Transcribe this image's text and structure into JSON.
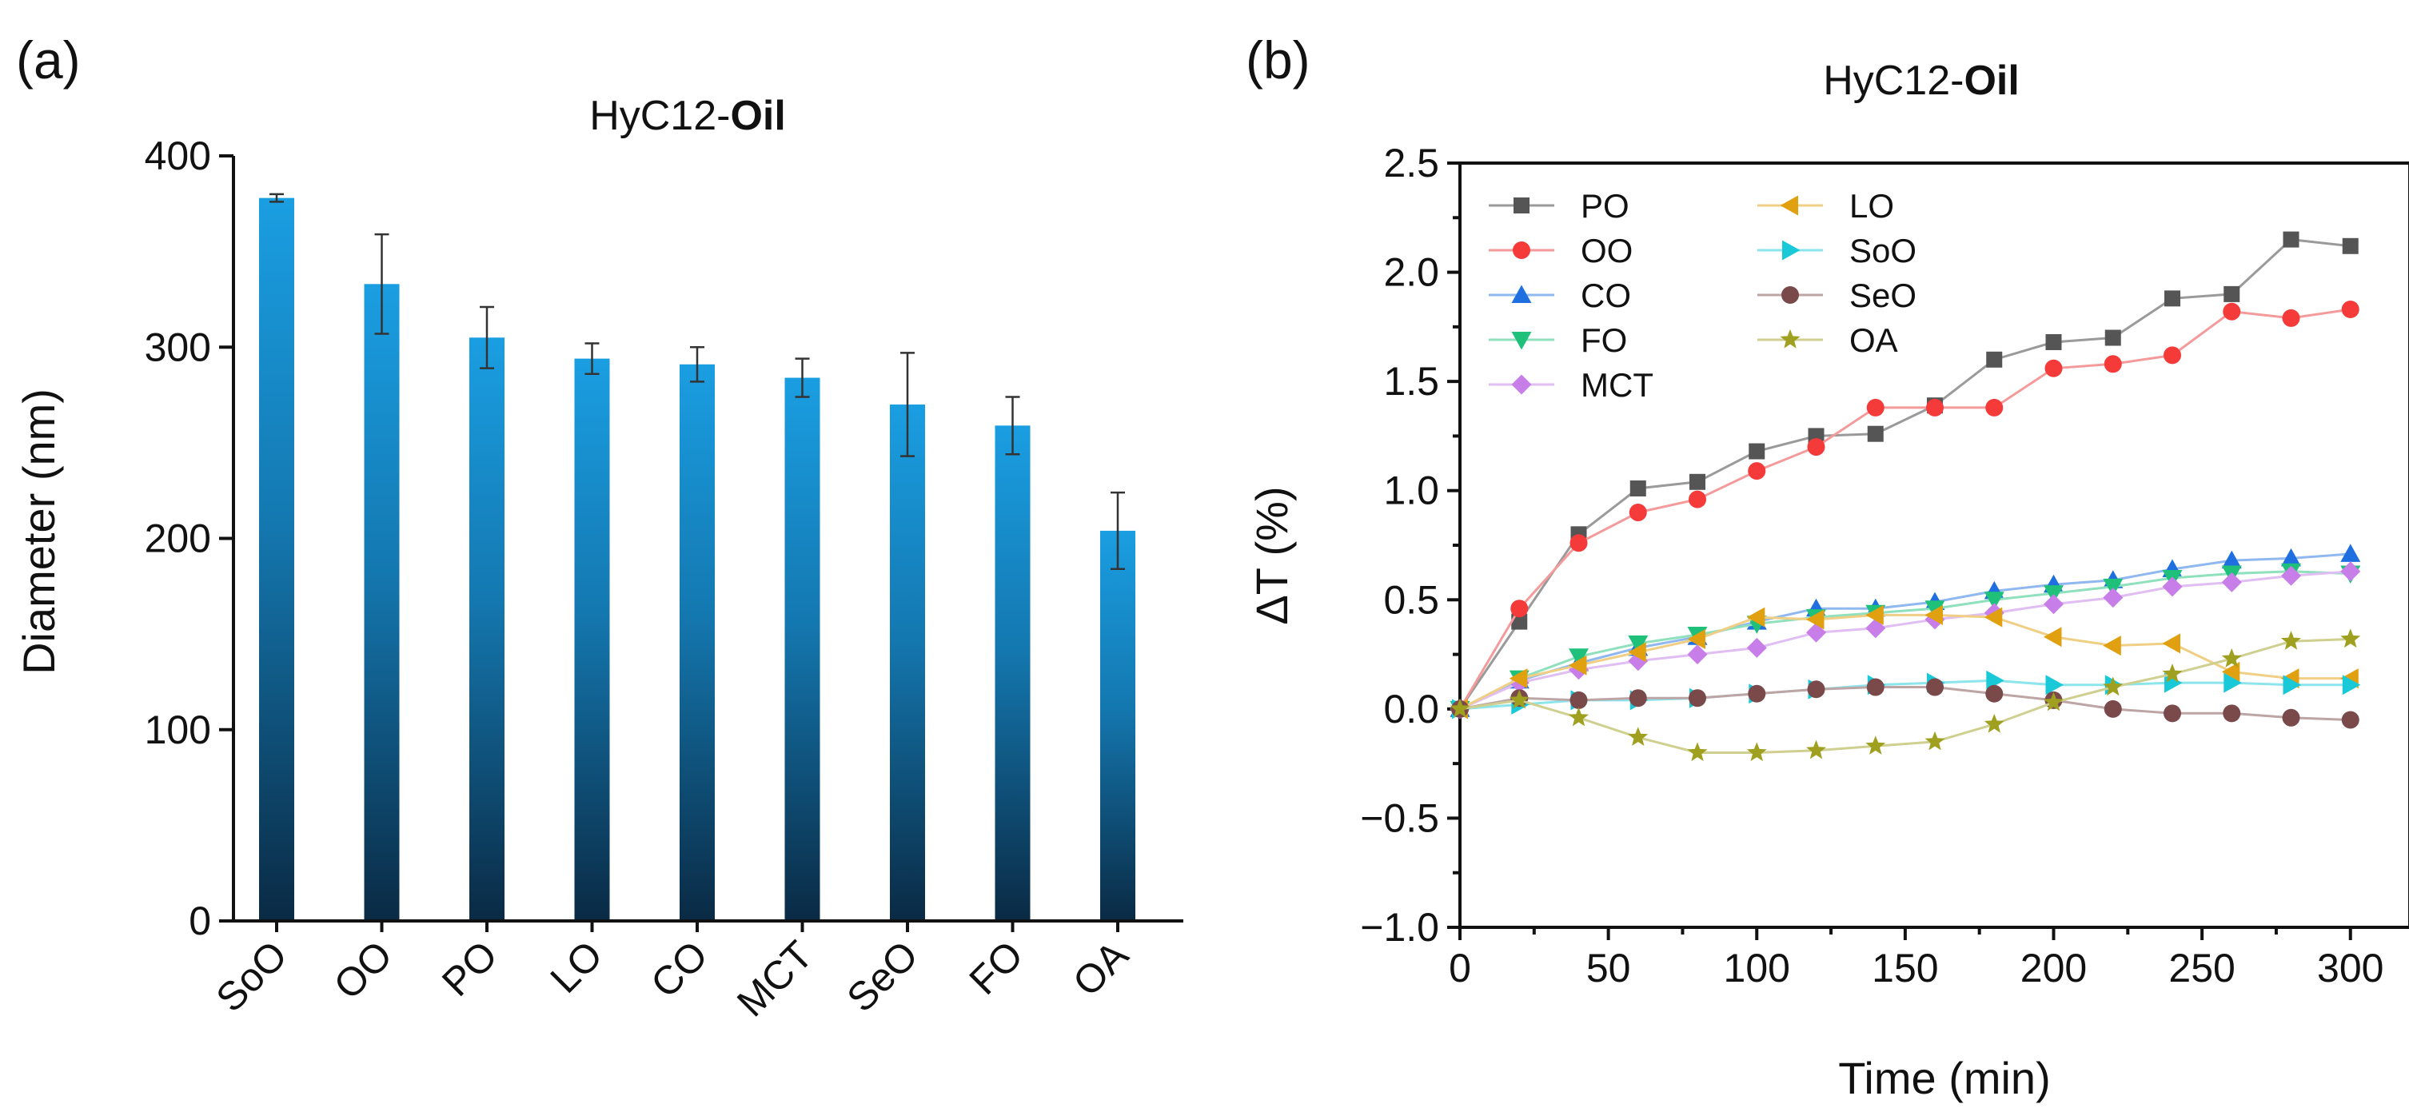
{
  "chart_data": [
    {
      "type": "bar",
      "panel_label": "(a)",
      "title": {
        "prefix": "HyC12-",
        "bold": "Oil"
      },
      "xlabel": "",
      "ylabel": "Diameter (nm)",
      "ylim": [
        0,
        400
      ],
      "yticks": [
        0,
        100,
        200,
        300,
        400
      ],
      "categories": [
        "SoO",
        "OO",
        "PO",
        "LO",
        "CO",
        "MCT",
        "SeO",
        "FO",
        "OA"
      ],
      "values": [
        378,
        333,
        305,
        294,
        291,
        284,
        270,
        259,
        204
      ],
      "errors": [
        2,
        26,
        16,
        8,
        9,
        10,
        27,
        15,
        20
      ],
      "bar_gradient": [
        "#1a9ee2",
        "#0a2a44"
      ]
    },
    {
      "type": "line",
      "panel_label": "(b)",
      "title": {
        "prefix": "HyC12-",
        "bold": "Oil"
      },
      "xlabel": "Time (min)",
      "ylabel": "ΔT (%)",
      "xlim": [
        0,
        320
      ],
      "ylim": [
        -1.0,
        2.5
      ],
      "xticks": [
        0,
        50,
        100,
        150,
        200,
        250,
        300
      ],
      "yticks": [
        -1.0,
        -0.5,
        0.0,
        0.5,
        1.0,
        1.5,
        2.0,
        2.5
      ],
      "ytick_labels": [
        "−1.0",
        "−0.5",
        "0.0",
        "0.5",
        "1.0",
        "1.5",
        "2.0",
        "2.5"
      ],
      "x": [
        0,
        20,
        40,
        60,
        80,
        100,
        120,
        140,
        160,
        180,
        200,
        220,
        240,
        260,
        280,
        300
      ],
      "legend_position": "top-left",
      "series": [
        {
          "name": "PO",
          "marker": "square",
          "color": "#555555",
          "line": "#9a9a9a",
          "values": [
            0.0,
            0.4,
            0.8,
            1.01,
            1.04,
            1.18,
            1.25,
            1.26,
            1.39,
            1.6,
            1.68,
            1.7,
            1.88,
            1.9,
            2.15,
            2.12
          ]
        },
        {
          "name": "OO",
          "marker": "circle",
          "color": "#f53a3a",
          "line": "#f59a9a",
          "values": [
            0.0,
            0.46,
            0.76,
            0.9,
            0.96,
            1.09,
            1.2,
            1.38,
            1.38,
            1.38,
            1.56,
            1.58,
            1.62,
            1.82,
            1.79,
            1.83
          ]
        },
        {
          "name": "CO",
          "marker": "triangle-up",
          "color": "#1f6fe0",
          "line": "#8fb8f0",
          "values": [
            0.0,
            0.13,
            0.21,
            0.28,
            0.33,
            0.4,
            0.46,
            0.46,
            0.49,
            0.54,
            0.57,
            0.59,
            0.64,
            0.68,
            0.69,
            0.71
          ]
        },
        {
          "name": "FO",
          "marker": "triangle-down",
          "color": "#1fc07a",
          "line": "#8fe0bd",
          "values": [
            0.0,
            0.14,
            0.24,
            0.3,
            0.34,
            0.39,
            0.42,
            0.44,
            0.46,
            0.5,
            0.53,
            0.56,
            0.6,
            0.62,
            0.63,
            0.62
          ]
        },
        {
          "name": "MCT",
          "marker": "diamond",
          "color": "#c77ee8",
          "line": "#e0bdf2",
          "values": [
            0.0,
            0.12,
            0.18,
            0.22,
            0.25,
            0.28,
            0.35,
            0.37,
            0.41,
            0.44,
            0.48,
            0.51,
            0.56,
            0.58,
            0.61,
            0.63
          ]
        },
        {
          "name": "LO",
          "marker": "triangle-left",
          "color": "#e0a010",
          "line": "#f0cf85",
          "values": [
            0.0,
            0.14,
            0.2,
            0.26,
            0.32,
            0.42,
            0.41,
            0.43,
            0.43,
            0.42,
            0.33,
            0.29,
            0.3,
            0.17,
            0.14,
            0.14
          ]
        },
        {
          "name": "SoO",
          "marker": "triangle-right",
          "color": "#19c9d8",
          "line": "#8ce4ec",
          "values": [
            0.0,
            0.02,
            0.04,
            0.04,
            0.05,
            0.07,
            0.09,
            0.11,
            0.12,
            0.13,
            0.11,
            0.11,
            0.12,
            0.12,
            0.11,
            0.11
          ]
        },
        {
          "name": "SeO",
          "marker": "circle",
          "color": "#7a4a4a",
          "line": "#bda5a5",
          "values": [
            0.0,
            0.05,
            0.04,
            0.05,
            0.05,
            0.07,
            0.09,
            0.1,
            0.1,
            0.07,
            0.04,
            0.0,
            -0.02,
            -0.02,
            -0.04,
            -0.05
          ]
        },
        {
          "name": "OA",
          "marker": "star",
          "color": "#a0a020",
          "line": "#cfcf90",
          "values": [
            0.0,
            0.04,
            -0.04,
            -0.13,
            -0.2,
            -0.2,
            -0.19,
            -0.17,
            -0.15,
            -0.07,
            0.03,
            0.1,
            0.16,
            0.23,
            0.31,
            0.32
          ]
        }
      ]
    }
  ]
}
